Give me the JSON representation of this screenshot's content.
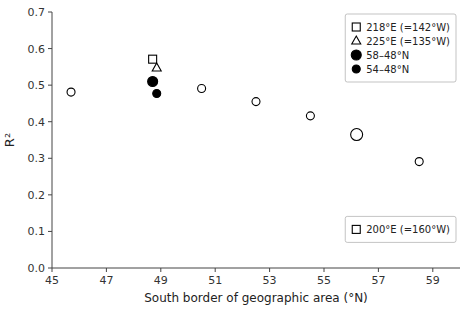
{
  "chart_data": {
    "type": "scatter",
    "x_label": "South border of geographic area (°N)",
    "y_label": "R²",
    "xlim": [
      45,
      60
    ],
    "ylim": [
      0,
      0.7
    ],
    "xticks": [
      45,
      47,
      49,
      51,
      53,
      55,
      57,
      59
    ],
    "yticks": [
      {
        "value": 0,
        "label": "0.0"
      },
      0.1,
      0.2,
      0.3,
      0.4,
      0.5,
      0.6,
      0.7
    ],
    "grid": false,
    "legend": "upper right",
    "series": [
      {
        "marker": "open-circle",
        "x": [
          45.7,
          50.5,
          52.5,
          54.5,
          58.5
        ],
        "values": [
          0.481,
          0.491,
          0.455,
          0.416,
          0.291
        ]
      },
      {
        "marker": "large-open-circle",
        "x": [
          56.2
        ],
        "values": [
          0.365
        ]
      },
      {
        "name": "218°E (=142°W)",
        "marker": "open-square",
        "x": [
          48.7
        ],
        "values": [
          0.571
        ]
      },
      {
        "name": "225°E (=135°W)",
        "marker": "open-triangle",
        "x": [
          48.85
        ],
        "values": [
          0.547
        ]
      },
      {
        "name": "58–48°N",
        "marker": "large-filled-circle",
        "x": [
          48.7
        ],
        "values": [
          0.51
        ]
      },
      {
        "name": "54–48°N",
        "marker": "filled-circle",
        "x": [
          48.85
        ],
        "values": [
          0.477
        ]
      },
      {
        "name": "200°E (=160°W)",
        "marker": "open-square",
        "x": [],
        "values": []
      }
    ]
  }
}
